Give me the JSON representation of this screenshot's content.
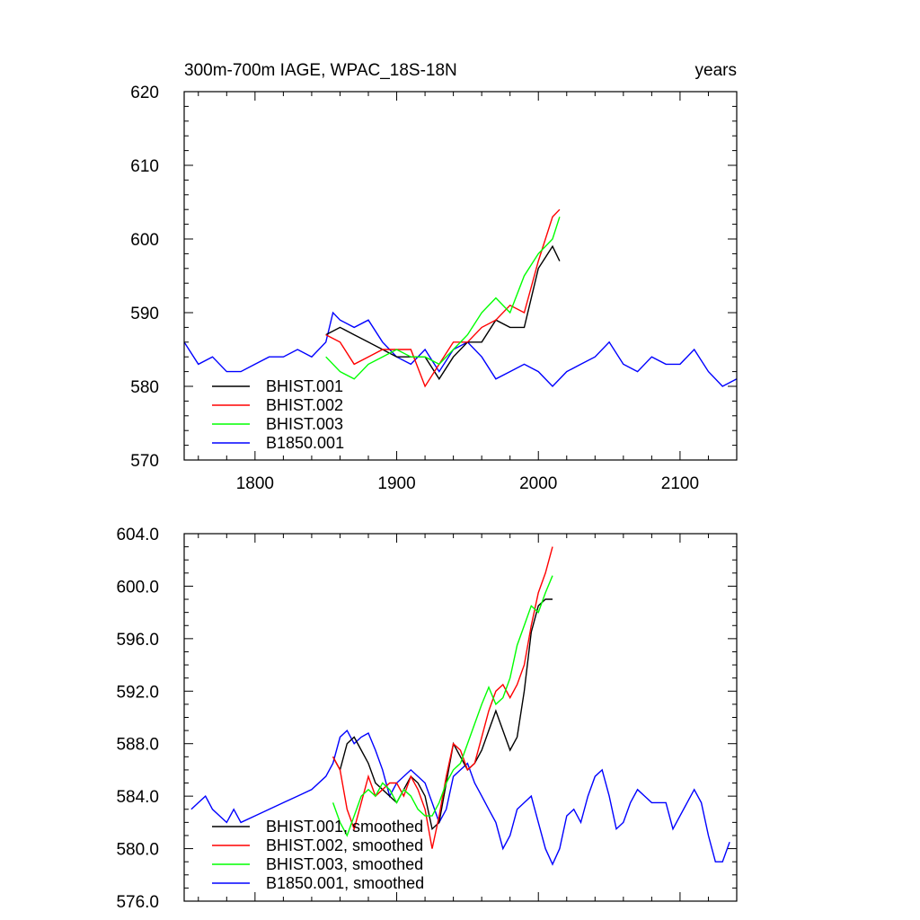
{
  "chart_data": [
    {
      "type": "line",
      "title": "300m-700m IAGE, WPAC_18S-18N",
      "unit_label": "years",
      "xlim": [
        1750,
        2140
      ],
      "ylim": [
        570,
        620
      ],
      "x_ticks": [
        1800,
        1900,
        2000,
        2100
      ],
      "y_ticks": [
        570,
        580,
        590,
        600,
        610,
        620
      ],
      "y_tick_labels": [
        "570",
        "580",
        "590",
        "600",
        "610",
        "620"
      ],
      "legend_position": "lower-left",
      "series": [
        {
          "name": "B1850.001",
          "color": "#0000ff",
          "x": [
            1750,
            1760,
            1770,
            1780,
            1790,
            1800,
            1810,
            1820,
            1830,
            1840,
            1850,
            1855,
            1860,
            1870,
            1880,
            1890,
            1900,
            1910,
            1920,
            1930,
            1940,
            1950,
            1960,
            1970,
            1980,
            1990,
            2000,
            2010,
            2020,
            2030,
            2040,
            2050,
            2060,
            2070,
            2080,
            2090,
            2100,
            2110,
            2120,
            2130,
            2140
          ],
          "values": [
            586,
            583,
            584,
            582,
            582,
            583,
            584,
            584,
            585,
            584,
            586,
            590,
            589,
            588,
            589,
            586,
            584,
            583,
            585,
            582,
            585,
            586,
            584,
            581,
            582,
            583,
            582,
            580,
            582,
            583,
            584,
            586,
            583,
            582,
            584,
            583,
            583,
            585,
            582,
            580,
            581
          ]
        },
        {
          "name": "BHIST.001",
          "color": "#000000",
          "x": [
            1850,
            1860,
            1870,
            1880,
            1890,
            1900,
            1910,
            1920,
            1930,
            1940,
            1950,
            1960,
            1970,
            1980,
            1990,
            2000,
            2010,
            2015
          ],
          "values": [
            587,
            588,
            587,
            586,
            585,
            584,
            584,
            584,
            581,
            584,
            586,
            586,
            589,
            588,
            588,
            596,
            599,
            597
          ]
        },
        {
          "name": "BHIST.002",
          "color": "#ff0000",
          "x": [
            1850,
            1860,
            1870,
            1880,
            1890,
            1900,
            1910,
            1920,
            1930,
            1940,
            1950,
            1960,
            1970,
            1980,
            1990,
            2000,
            2010,
            2015
          ],
          "values": [
            587,
            586,
            583,
            584,
            585,
            585,
            585,
            580,
            583,
            586,
            586,
            588,
            589,
            591,
            590,
            597,
            603,
            604
          ]
        },
        {
          "name": "BHIST.003",
          "color": "#00ff00",
          "x": [
            1850,
            1860,
            1870,
            1880,
            1890,
            1900,
            1910,
            1920,
            1930,
            1940,
            1950,
            1960,
            1970,
            1980,
            1990,
            2000,
            2010,
            2015
          ],
          "values": [
            584,
            582,
            581,
            583,
            584,
            585,
            584,
            584,
            583,
            585,
            587,
            590,
            592,
            590,
            595,
            598,
            600,
            603
          ]
        }
      ]
    },
    {
      "type": "line",
      "xlim": [
        1750,
        2140
      ],
      "ylim": [
        576,
        604
      ],
      "x_ticks": [
        1800,
        1900,
        2000,
        2100
      ],
      "y_ticks": [
        576,
        580,
        584,
        588,
        592,
        596,
        600,
        604
      ],
      "y_tick_labels": [
        "576.0",
        "580.0",
        "584.0",
        "588.0",
        "592.0",
        "596.0",
        "600.0",
        "604.0"
      ],
      "legend_position": "lower-left",
      "series": [
        {
          "name": "B1850.001, smoothed",
          "color": "#0000ff",
          "x": [
            1755,
            1760,
            1765,
            1770,
            1775,
            1780,
            1785,
            1790,
            1800,
            1810,
            1820,
            1830,
            1840,
            1850,
            1855,
            1860,
            1865,
            1870,
            1875,
            1880,
            1885,
            1890,
            1895,
            1900,
            1910,
            1920,
            1925,
            1930,
            1935,
            1940,
            1945,
            1950,
            1955,
            1960,
            1965,
            1970,
            1975,
            1980,
            1985,
            1990,
            1995,
            2000,
            2005,
            2010,
            2015,
            2020,
            2025,
            2030,
            2035,
            2040,
            2045,
            2050,
            2055,
            2060,
            2065,
            2070,
            2075,
            2080,
            2085,
            2090,
            2095,
            2100,
            2105,
            2110,
            2115,
            2120,
            2125,
            2130,
            2135
          ],
          "values": [
            583.0,
            583.5,
            584.0,
            583.0,
            582.5,
            582.0,
            583.0,
            582.0,
            582.5,
            583.0,
            583.5,
            584.0,
            584.5,
            585.5,
            586.5,
            588.5,
            589.0,
            588.0,
            588.5,
            588.8,
            587.5,
            586.0,
            584.0,
            585.0,
            586.0,
            585.0,
            583.5,
            582.0,
            583.0,
            585.5,
            586.0,
            586.5,
            585.0,
            584.0,
            583.0,
            582.0,
            580.0,
            581.0,
            583.0,
            583.5,
            584.0,
            582.0,
            580.0,
            578.8,
            580.0,
            582.5,
            583.0,
            582.0,
            584.0,
            585.5,
            586.0,
            584.0,
            581.5,
            582.0,
            583.5,
            584.5,
            584.0,
            583.5,
            583.5,
            583.5,
            581.5,
            582.5,
            583.5,
            584.5,
            583.5,
            581.0,
            579.0,
            579.0,
            580.5
          ]
        },
        {
          "name": "BHIST.001, smoothed",
          "color": "#000000",
          "x": [
            1855,
            1860,
            1865,
            1870,
            1875,
            1880,
            1885,
            1890,
            1895,
            1900,
            1905,
            1910,
            1915,
            1920,
            1925,
            1930,
            1935,
            1940,
            1945,
            1950,
            1955,
            1960,
            1965,
            1970,
            1975,
            1980,
            1985,
            1990,
            1995,
            2000,
            2005,
            2010
          ],
          "values": [
            587.0,
            586.0,
            588.0,
            588.5,
            587.5,
            586.5,
            585.0,
            584.5,
            584.0,
            583.5,
            584.5,
            585.5,
            585.0,
            584.0,
            581.5,
            582.0,
            585.0,
            588.0,
            587.0,
            586.0,
            586.5,
            587.5,
            589.0,
            590.5,
            589.0,
            587.5,
            588.5,
            592.0,
            596.5,
            598.5,
            599.0,
            599.0
          ]
        },
        {
          "name": "BHIST.002, smoothed",
          "color": "#ff0000",
          "x": [
            1855,
            1860,
            1865,
            1870,
            1875,
            1880,
            1885,
            1890,
            1895,
            1900,
            1905,
            1910,
            1915,
            1920,
            1925,
            1930,
            1935,
            1940,
            1945,
            1950,
            1955,
            1960,
            1965,
            1970,
            1975,
            1980,
            1985,
            1990,
            1995,
            2000,
            2005,
            2010
          ],
          "values": [
            587.0,
            586.0,
            583.0,
            581.5,
            583.5,
            585.5,
            584.0,
            584.5,
            585.0,
            585.0,
            584.0,
            585.5,
            584.5,
            583.0,
            580.0,
            582.5,
            585.5,
            588.0,
            587.5,
            586.0,
            586.5,
            588.5,
            590.5,
            592.0,
            592.5,
            591.5,
            592.5,
            594.0,
            597.0,
            599.5,
            601.0,
            603.0
          ]
        },
        {
          "name": "BHIST.003, smoothed",
          "color": "#00ff00",
          "x": [
            1855,
            1860,
            1865,
            1870,
            1875,
            1880,
            1885,
            1890,
            1895,
            1900,
            1905,
            1910,
            1915,
            1920,
            1925,
            1930,
            1935,
            1940,
            1945,
            1950,
            1955,
            1960,
            1965,
            1970,
            1975,
            1980,
            1985,
            1990,
            1995,
            2000,
            2005,
            2010
          ],
          "values": [
            583.5,
            582.0,
            581.0,
            582.5,
            584.0,
            584.5,
            584.0,
            585.0,
            584.5,
            583.5,
            584.5,
            584.0,
            583.0,
            582.5,
            582.5,
            583.5,
            585.0,
            586.0,
            586.5,
            588.0,
            589.5,
            591.0,
            592.3,
            591.0,
            591.5,
            593.0,
            595.5,
            597.0,
            598.5,
            598.0,
            599.5,
            600.8
          ]
        }
      ]
    }
  ]
}
